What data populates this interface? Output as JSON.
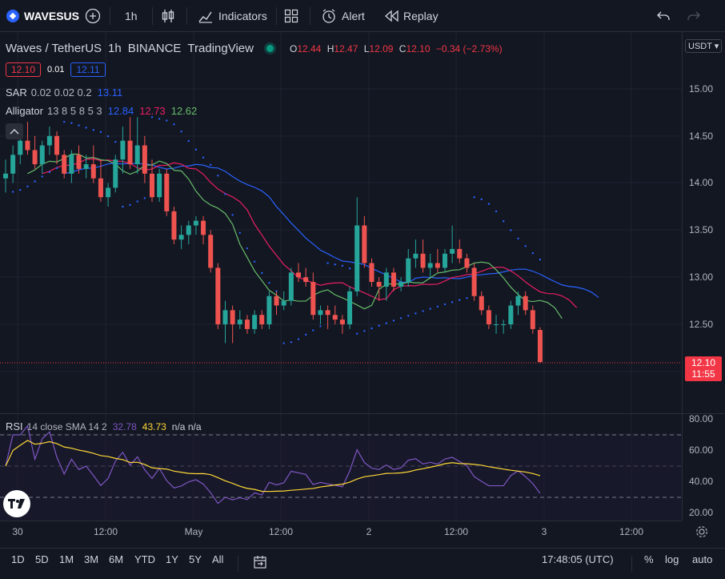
{
  "topbar": {
    "symbol": "WAVESUS",
    "interval": "1h",
    "indicators_label": "Indicators",
    "alert_label": "Alert",
    "replay_label": "Replay"
  },
  "legend": {
    "title_parts": [
      "Waves / TetherUS",
      "1h",
      "BINANCE",
      "TradingView"
    ],
    "o_label": "O",
    "o_value": "12.44",
    "h_label": "H",
    "h_value": "12.47",
    "l_label": "L",
    "l_value": "12.09",
    "c_label": "C",
    "c_value": "12.10",
    "change": "−0.34 (−2.73%)",
    "bid": "12.10",
    "spread": "0.01",
    "ask": "12.11",
    "sar_name": "SAR",
    "sar_params": "0.02 0.02 0.2",
    "sar_value": "13.11",
    "alligator_name": "Alligator",
    "alligator_params": "13 8 5 8 5 3",
    "alligator_jaw": "12.84",
    "alligator_teeth": "12.73",
    "alligator_lips": "12.62"
  },
  "rsi_legend": {
    "name": "RSI",
    "params": "14 close SMA 14 2",
    "rsi_value": "32.78",
    "sma_value": "43.73",
    "extra": "n/a n/a"
  },
  "price_axis": {
    "currency": "USDT",
    "labels": [
      "15.00",
      "14.50",
      "14.00",
      "13.50",
      "13.00",
      "12.50"
    ],
    "last_price": "12.10",
    "countdown": "11:55",
    "rsi_labels": [
      "80.00",
      "60.00",
      "40.00",
      "20.00"
    ]
  },
  "time_axis": {
    "labels": [
      "30",
      "12:00",
      "May",
      "12:00",
      "2",
      "12:00",
      "3",
      "12:00"
    ]
  },
  "bottombar": {
    "ranges": [
      "1D",
      "5D",
      "1M",
      "3M",
      "6M",
      "YTD",
      "1Y",
      "5Y",
      "All"
    ],
    "clock": "17:48:05 (UTC)",
    "pct": "%",
    "log": "log",
    "auto": "auto"
  },
  "colors": {
    "up": "#26a69a",
    "down": "#ef5350",
    "jaw": "#2962ff",
    "teeth": "#e91e63",
    "lips": "#66bb6a",
    "rsi": "#7e57c2",
    "rsi_sma": "#fdd835"
  },
  "chart_data": {
    "type": "candlestick",
    "x_start": "Apr 30 00:00",
    "interval": "1h",
    "ylim": [
      11.8,
      15.2
    ],
    "candles": [
      {
        "o": 14.05,
        "h": 14.25,
        "l": 13.9,
        "c": 14.1
      },
      {
        "o": 14.1,
        "h": 14.4,
        "l": 14.0,
        "c": 14.3
      },
      {
        "o": 14.3,
        "h": 14.55,
        "l": 14.2,
        "c": 14.45
      },
      {
        "o": 14.45,
        "h": 14.65,
        "l": 14.3,
        "c": 14.35
      },
      {
        "o": 14.35,
        "h": 14.5,
        "l": 14.15,
        "c": 14.2
      },
      {
        "o": 14.2,
        "h": 14.45,
        "l": 14.1,
        "c": 14.4
      },
      {
        "o": 14.4,
        "h": 14.6,
        "l": 14.3,
        "c": 14.5
      },
      {
        "o": 14.5,
        "h": 14.55,
        "l": 14.2,
        "c": 14.3
      },
      {
        "o": 14.3,
        "h": 14.35,
        "l": 14.05,
        "c": 14.1
      },
      {
        "o": 14.1,
        "h": 14.35,
        "l": 14.0,
        "c": 14.3
      },
      {
        "o": 14.3,
        "h": 14.4,
        "l": 14.1,
        "c": 14.15
      },
      {
        "o": 14.15,
        "h": 14.3,
        "l": 14.05,
        "c": 14.2
      },
      {
        "o": 14.2,
        "h": 14.4,
        "l": 14.0,
        "c": 14.05
      },
      {
        "o": 14.05,
        "h": 14.25,
        "l": 13.8,
        "c": 13.85
      },
      {
        "o": 13.85,
        "h": 14.0,
        "l": 13.75,
        "c": 13.95
      },
      {
        "o": 13.95,
        "h": 14.3,
        "l": 13.9,
        "c": 14.25
      },
      {
        "o": 14.25,
        "h": 14.6,
        "l": 14.1,
        "c": 14.45
      },
      {
        "o": 14.45,
        "h": 14.7,
        "l": 14.15,
        "c": 14.2
      },
      {
        "o": 14.2,
        "h": 14.7,
        "l": 14.1,
        "c": 14.4
      },
      {
        "o": 14.4,
        "h": 14.5,
        "l": 14.0,
        "c": 14.1
      },
      {
        "o": 14.1,
        "h": 14.25,
        "l": 13.8,
        "c": 13.85
      },
      {
        "o": 13.85,
        "h": 14.15,
        "l": 13.8,
        "c": 14.1
      },
      {
        "o": 14.1,
        "h": 14.15,
        "l": 13.65,
        "c": 13.7
      },
      {
        "o": 13.7,
        "h": 13.75,
        "l": 13.35,
        "c": 13.4
      },
      {
        "o": 13.4,
        "h": 13.55,
        "l": 13.3,
        "c": 13.45
      },
      {
        "o": 13.45,
        "h": 13.6,
        "l": 13.35,
        "c": 13.55
      },
      {
        "o": 13.55,
        "h": 13.65,
        "l": 13.45,
        "c": 13.6
      },
      {
        "o": 13.6,
        "h": 13.65,
        "l": 13.35,
        "c": 13.45
      },
      {
        "o": 13.45,
        "h": 13.5,
        "l": 13.05,
        "c": 13.1
      },
      {
        "o": 13.1,
        "h": 13.15,
        "l": 12.45,
        "c": 12.5
      },
      {
        "o": 12.5,
        "h": 12.75,
        "l": 12.3,
        "c": 12.65
      },
      {
        "o": 12.65,
        "h": 12.7,
        "l": 12.3,
        "c": 12.5
      },
      {
        "o": 12.5,
        "h": 12.65,
        "l": 12.45,
        "c": 12.55
      },
      {
        "o": 12.55,
        "h": 12.6,
        "l": 12.4,
        "c": 12.45
      },
      {
        "o": 12.45,
        "h": 12.65,
        "l": 12.4,
        "c": 12.6
      },
      {
        "o": 12.6,
        "h": 12.65,
        "l": 12.45,
        "c": 12.5
      },
      {
        "o": 12.5,
        "h": 12.85,
        "l": 12.45,
        "c": 12.8
      },
      {
        "o": 12.8,
        "h": 12.85,
        "l": 12.6,
        "c": 12.7
      },
      {
        "o": 12.7,
        "h": 12.85,
        "l": 12.65,
        "c": 12.75
      },
      {
        "o": 12.75,
        "h": 13.1,
        "l": 12.7,
        "c": 13.05
      },
      {
        "o": 13.05,
        "h": 13.15,
        "l": 12.95,
        "c": 13.0
      },
      {
        "o": 13.0,
        "h": 13.1,
        "l": 12.9,
        "c": 12.95
      },
      {
        "o": 12.95,
        "h": 13.05,
        "l": 12.55,
        "c": 12.6
      },
      {
        "o": 12.6,
        "h": 12.7,
        "l": 12.5,
        "c": 12.65
      },
      {
        "o": 12.65,
        "h": 12.7,
        "l": 12.45,
        "c": 12.6
      },
      {
        "o": 12.6,
        "h": 12.7,
        "l": 12.5,
        "c": 12.55
      },
      {
        "o": 12.55,
        "h": 12.6,
        "l": 12.4,
        "c": 12.5
      },
      {
        "o": 12.5,
        "h": 12.9,
        "l": 12.45,
        "c": 12.85
      },
      {
        "o": 12.85,
        "h": 13.85,
        "l": 12.8,
        "c": 13.55
      },
      {
        "o": 13.55,
        "h": 13.65,
        "l": 13.1,
        "c": 13.15
      },
      {
        "o": 13.15,
        "h": 13.2,
        "l": 12.9,
        "c": 12.95
      },
      {
        "o": 12.95,
        "h": 13.0,
        "l": 12.75,
        "c": 12.9
      },
      {
        "o": 12.9,
        "h": 13.1,
        "l": 12.75,
        "c": 13.05
      },
      {
        "o": 13.05,
        "h": 13.1,
        "l": 12.85,
        "c": 12.9
      },
      {
        "o": 12.9,
        "h": 13.0,
        "l": 12.85,
        "c": 12.95
      },
      {
        "o": 12.95,
        "h": 13.3,
        "l": 12.9,
        "c": 13.2
      },
      {
        "o": 13.2,
        "h": 13.4,
        "l": 13.1,
        "c": 13.25
      },
      {
        "o": 13.25,
        "h": 13.4,
        "l": 13.05,
        "c": 13.1
      },
      {
        "o": 13.1,
        "h": 13.25,
        "l": 13.0,
        "c": 13.15
      },
      {
        "o": 13.15,
        "h": 13.3,
        "l": 13.05,
        "c": 13.1
      },
      {
        "o": 13.1,
        "h": 13.3,
        "l": 13.05,
        "c": 13.25
      },
      {
        "o": 13.25,
        "h": 13.55,
        "l": 13.15,
        "c": 13.3
      },
      {
        "o": 13.3,
        "h": 13.4,
        "l": 13.15,
        "c": 13.2
      },
      {
        "o": 13.2,
        "h": 13.25,
        "l": 13.05,
        "c": 13.1
      },
      {
        "o": 13.1,
        "h": 13.15,
        "l": 12.75,
        "c": 12.8
      },
      {
        "o": 12.8,
        "h": 12.85,
        "l": 12.6,
        "c": 12.65
      },
      {
        "o": 12.65,
        "h": 12.7,
        "l": 12.45,
        "c": 12.5
      },
      {
        "o": 12.5,
        "h": 12.6,
        "l": 12.4,
        "c": 12.5
      },
      {
        "o": 12.5,
        "h": 12.55,
        "l": 12.4,
        "c": 12.5
      },
      {
        "o": 12.5,
        "h": 12.75,
        "l": 12.45,
        "c": 12.7
      },
      {
        "o": 12.7,
        "h": 12.85,
        "l": 12.6,
        "c": 12.8
      },
      {
        "o": 12.8,
        "h": 12.85,
        "l": 12.6,
        "c": 12.65
      },
      {
        "o": 12.65,
        "h": 12.7,
        "l": 12.4,
        "c": 12.45
      },
      {
        "o": 12.44,
        "h": 12.47,
        "l": 12.09,
        "c": 12.1
      }
    ],
    "sar": [],
    "rsi_ylim": [
      15,
      85
    ]
  }
}
